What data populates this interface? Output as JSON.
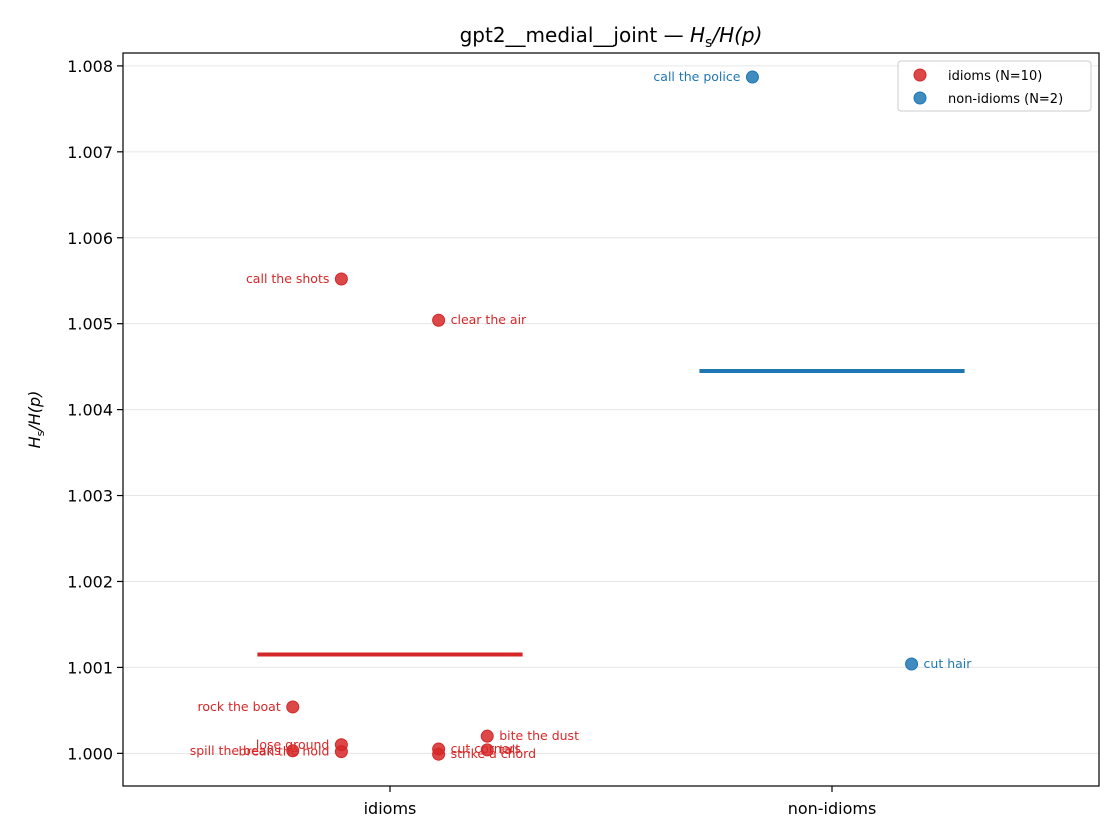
{
  "chart_data": {
    "type": "scatter",
    "title": {
      "prefix": "gpt2__medial__joint — ",
      "math": {
        "H": "H",
        "sub": "s",
        "rest": "/H(p)"
      }
    },
    "ylabel": {
      "H": "H",
      "sub": "s",
      "rest": "/H(p)"
    },
    "ylim": [
      0.99962,
      1.00815
    ],
    "yticks": [
      1.0,
      1.001,
      1.002,
      1.003,
      1.004,
      1.005,
      1.006,
      1.007,
      1.008
    ],
    "ytick_labels": [
      "1.000",
      "1.001",
      "1.002",
      "1.003",
      "1.004",
      "1.005",
      "1.006",
      "1.007",
      "1.008"
    ],
    "categories": [
      "idioms",
      "non-idioms"
    ],
    "grid": "horizontal",
    "legend": {
      "position": "top-right",
      "entries": [
        "idioms (N=10)",
        "non-idioms (N=2)"
      ]
    },
    "colors": {
      "idioms": "#d62728",
      "non-idioms": "#1f77b4"
    },
    "series": [
      {
        "name": "idioms (N=10)",
        "category": "idioms",
        "mean": 1.00115,
        "points": [
          {
            "label": "call the shots",
            "jitter": -0.11,
            "y": 1.00552,
            "side": "left"
          },
          {
            "label": "clear the air",
            "jitter": 0.11,
            "y": 1.00504,
            "side": "right"
          },
          {
            "label": "rock the boat",
            "jitter": -0.22,
            "y": 1.00054,
            "side": "left"
          },
          {
            "label": "bite the dust",
            "jitter": 0.22,
            "y": 1.0002,
            "side": "right"
          },
          {
            "label": "lose ground",
            "jitter": -0.11,
            "y": 1.0001,
            "side": "left"
          },
          {
            "label": "cut corners",
            "jitter": 0.11,
            "y": 1.00005,
            "side": "right"
          },
          {
            "label": "spill the beans",
            "jitter": -0.22,
            "y": 1.00003,
            "side": "left"
          },
          {
            "label": "tail",
            "jitter": 0.22,
            "y": 1.00004,
            "side": "right"
          },
          {
            "label": "break the hold",
            "jitter": -0.11,
            "y": 1.00002,
            "side": "left"
          },
          {
            "label": "strike a chord",
            "jitter": 0.11,
            "y": 0.99999,
            "side": "right"
          }
        ]
      },
      {
        "name": "non-idioms (N=2)",
        "category": "non-idioms",
        "mean": 1.00445,
        "points": [
          {
            "label": "call the police",
            "jitter": -0.18,
            "y": 1.00787,
            "side": "left"
          },
          {
            "label": "cut hair",
            "jitter": 0.18,
            "y": 1.00104,
            "side": "right"
          }
        ]
      }
    ]
  }
}
